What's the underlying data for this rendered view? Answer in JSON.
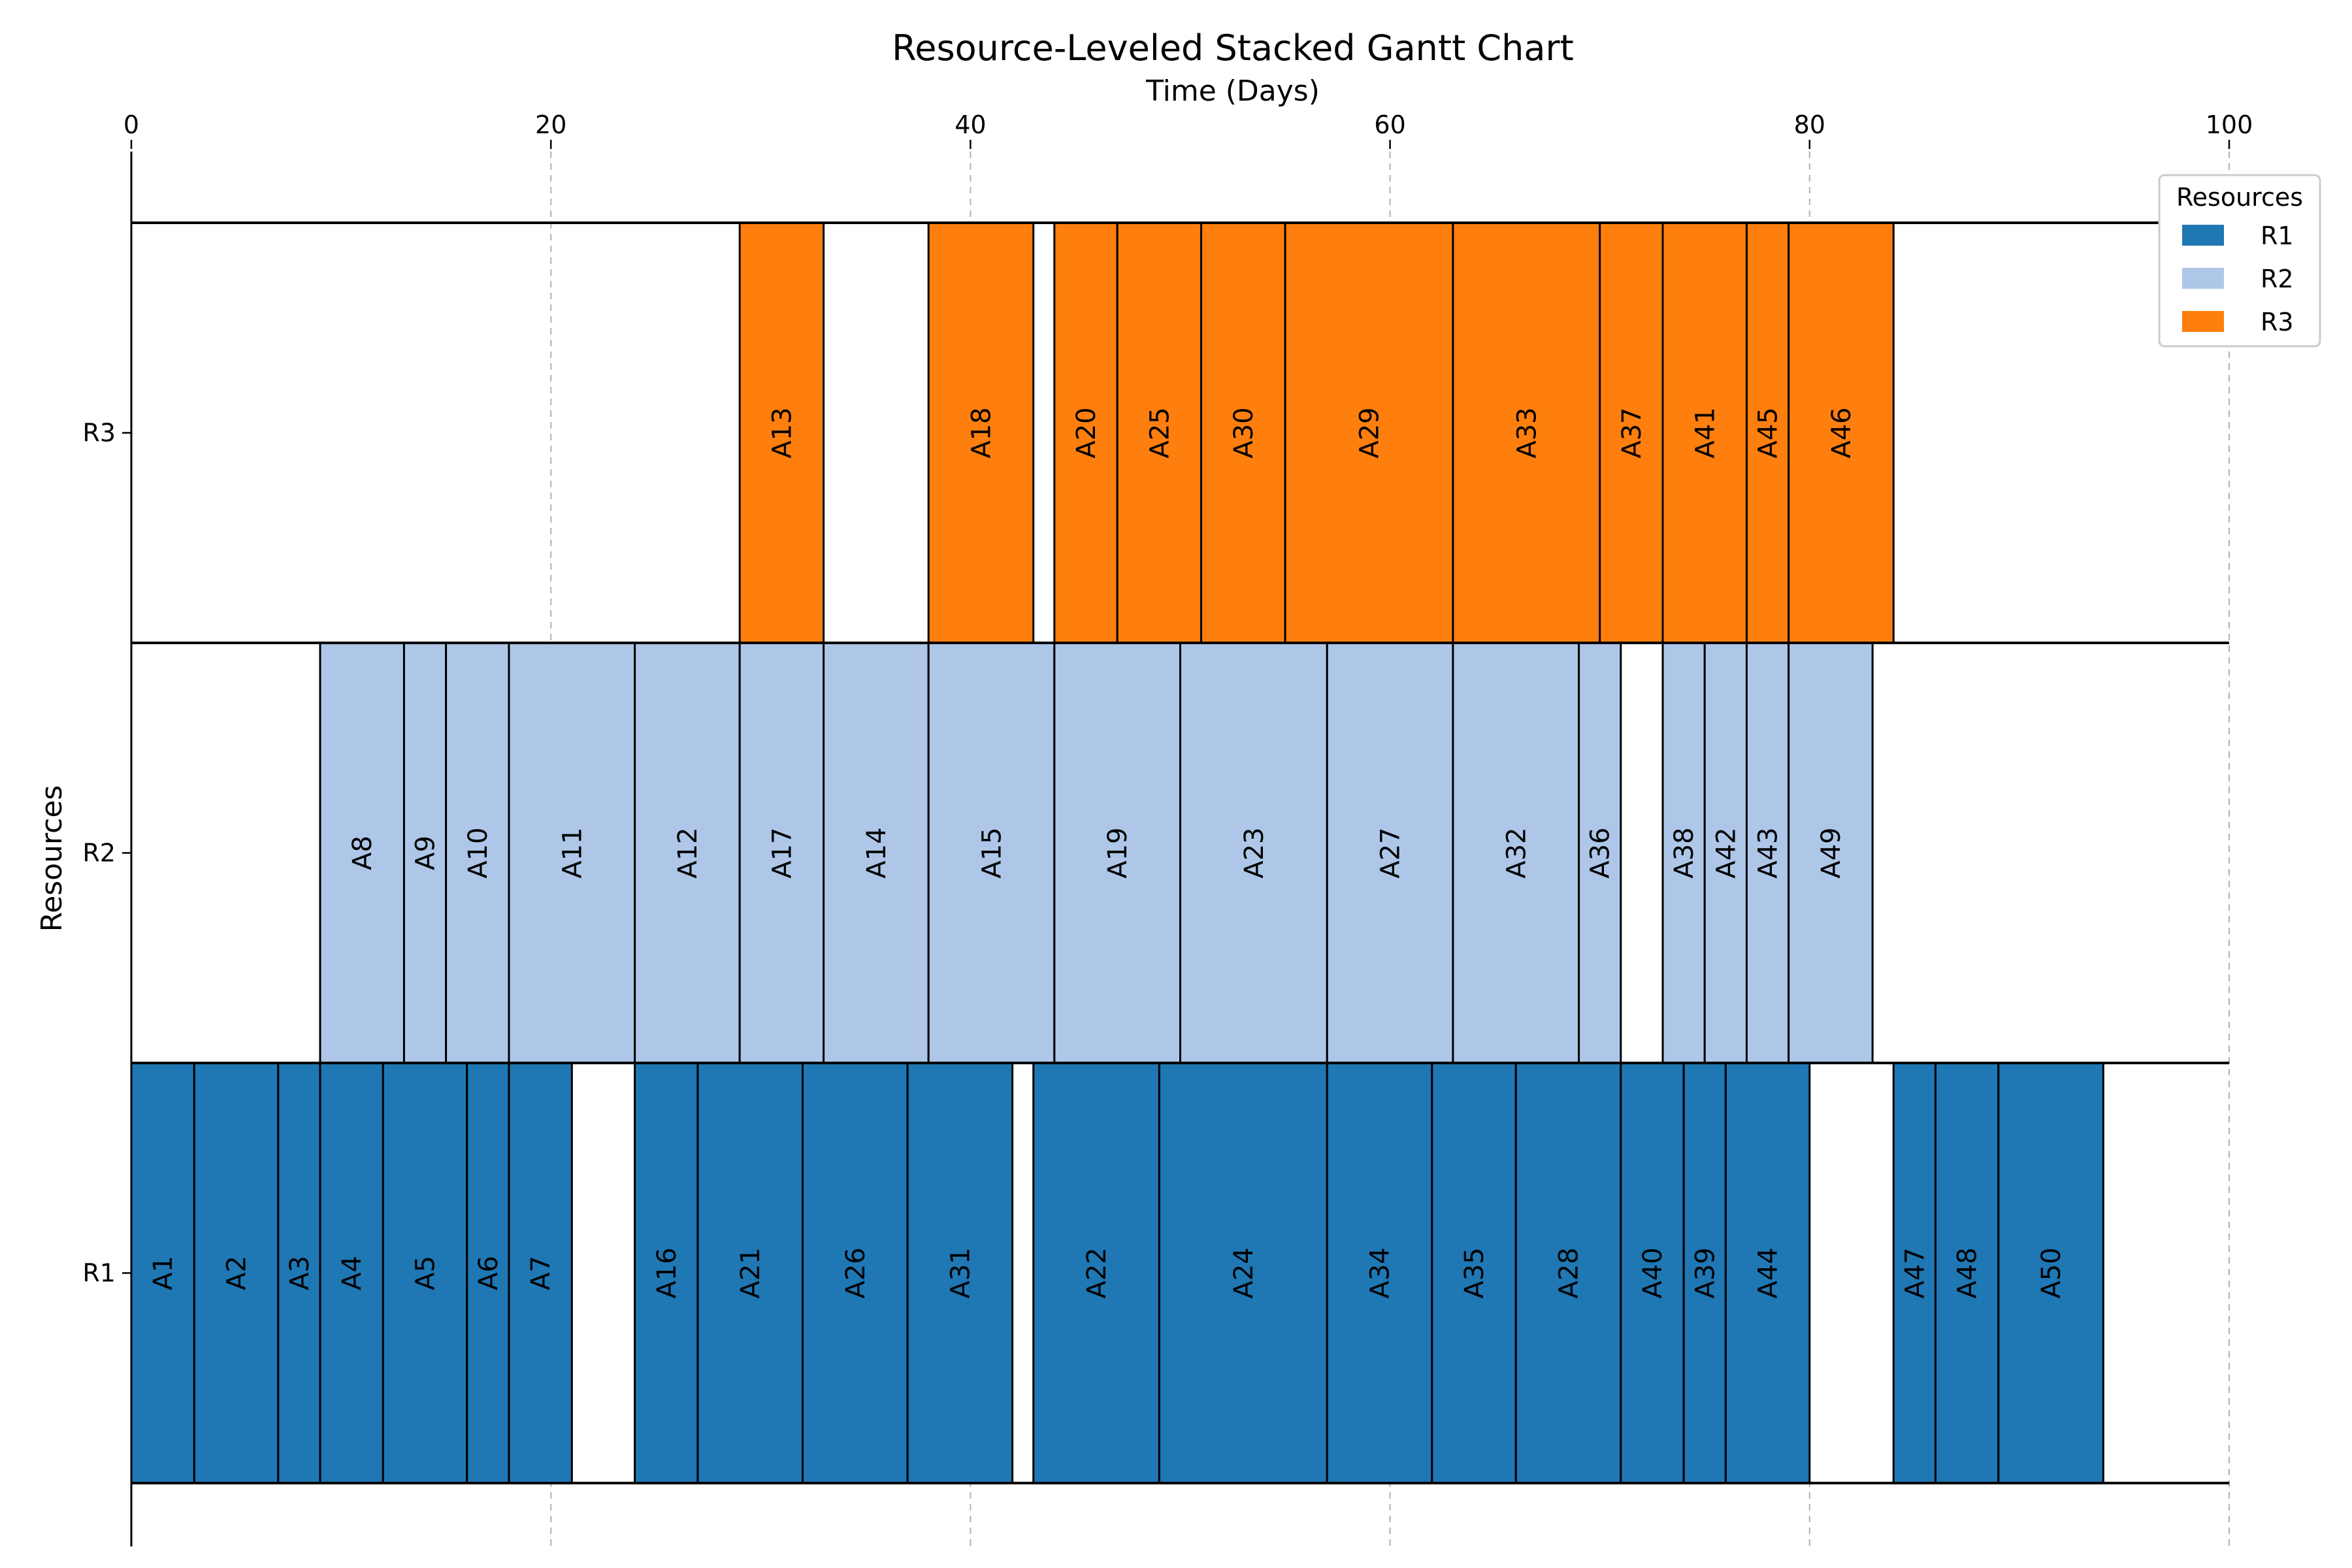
{
  "chart_data": {
    "type": "bar",
    "title": "Resource-Leveled Stacked Gantt Chart",
    "xlabel": "Time (Days)",
    "ylabel": "Resources",
    "xlim": [
      0,
      100
    ],
    "x_ticks": [
      "0",
      "20",
      "40",
      "60",
      "80",
      "100"
    ],
    "categories": [
      "R1",
      "R2",
      "R3"
    ],
    "grid": "vertical dashed",
    "legend": {
      "title": "Resources",
      "placement": "top-right",
      "entries": [
        "R1",
        "R2",
        "R3"
      ]
    },
    "colors": {
      "R1": "#1f77b4",
      "R2": "#aec7e8",
      "R3": "#ff7f0e"
    },
    "series": [
      {
        "name": "R1",
        "tasks": [
          {
            "label": "A1",
            "start": 0,
            "end": 3
          },
          {
            "label": "A2",
            "start": 3,
            "end": 7
          },
          {
            "label": "A3",
            "start": 7,
            "end": 9
          },
          {
            "label": "A4",
            "start": 9,
            "end": 12
          },
          {
            "label": "A5",
            "start": 12,
            "end": 16
          },
          {
            "label": "A6",
            "start": 16,
            "end": 18
          },
          {
            "label": "A7",
            "start": 18,
            "end": 21
          },
          {
            "label": "A16",
            "start": 24,
            "end": 27
          },
          {
            "label": "A21",
            "start": 27,
            "end": 32
          },
          {
            "label": "A26",
            "start": 32,
            "end": 37
          },
          {
            "label": "A31",
            "start": 37,
            "end": 42
          },
          {
            "label": "A22",
            "start": 43,
            "end": 49
          },
          {
            "label": "A24",
            "start": 49,
            "end": 57
          },
          {
            "label": "A34",
            "start": 57,
            "end": 62
          },
          {
            "label": "A35",
            "start": 62,
            "end": 66
          },
          {
            "label": "A28",
            "start": 66,
            "end": 71
          },
          {
            "label": "A40",
            "start": 71,
            "end": 74
          },
          {
            "label": "A39",
            "start": 74,
            "end": 76
          },
          {
            "label": "A44",
            "start": 76,
            "end": 80
          },
          {
            "label": "A47",
            "start": 84,
            "end": 86
          },
          {
            "label": "A48",
            "start": 86,
            "end": 89
          },
          {
            "label": "A50",
            "start": 89,
            "end": 94
          }
        ]
      },
      {
        "name": "R2",
        "tasks": [
          {
            "label": "A8",
            "start": 9,
            "end": 13
          },
          {
            "label": "A9",
            "start": 13,
            "end": 15
          },
          {
            "label": "A10",
            "start": 15,
            "end": 18
          },
          {
            "label": "A11",
            "start": 18,
            "end": 24
          },
          {
            "label": "A12",
            "start": 24,
            "end": 29
          },
          {
            "label": "A17",
            "start": 29,
            "end": 33
          },
          {
            "label": "A14",
            "start": 33,
            "end": 38
          },
          {
            "label": "A15",
            "start": 38,
            "end": 44
          },
          {
            "label": "A19",
            "start": 44,
            "end": 50
          },
          {
            "label": "A23",
            "start": 50,
            "end": 57
          },
          {
            "label": "A27",
            "start": 57,
            "end": 63
          },
          {
            "label": "A32",
            "start": 63,
            "end": 69
          },
          {
            "label": "A36",
            "start": 69,
            "end": 71
          },
          {
            "label": "A38",
            "start": 73,
            "end": 75
          },
          {
            "label": "A42",
            "start": 75,
            "end": 77
          },
          {
            "label": "A43",
            "start": 77,
            "end": 79
          },
          {
            "label": "A49",
            "start": 79,
            "end": 83
          }
        ]
      },
      {
        "name": "R3",
        "tasks": [
          {
            "label": "A13",
            "start": 29,
            "end": 33
          },
          {
            "label": "A18",
            "start": 38,
            "end": 43
          },
          {
            "label": "A20",
            "start": 44,
            "end": 47
          },
          {
            "label": "A25",
            "start": 47,
            "end": 51
          },
          {
            "label": "A30",
            "start": 51,
            "end": 55
          },
          {
            "label": "A29",
            "start": 55,
            "end": 63
          },
          {
            "label": "A33",
            "start": 63,
            "end": 70
          },
          {
            "label": "A37",
            "start": 70,
            "end": 73
          },
          {
            "label": "A41",
            "start": 73,
            "end": 77
          },
          {
            "label": "A45",
            "start": 77,
            "end": 79
          },
          {
            "label": "A46",
            "start": 79,
            "end": 84
          }
        ]
      }
    ]
  }
}
